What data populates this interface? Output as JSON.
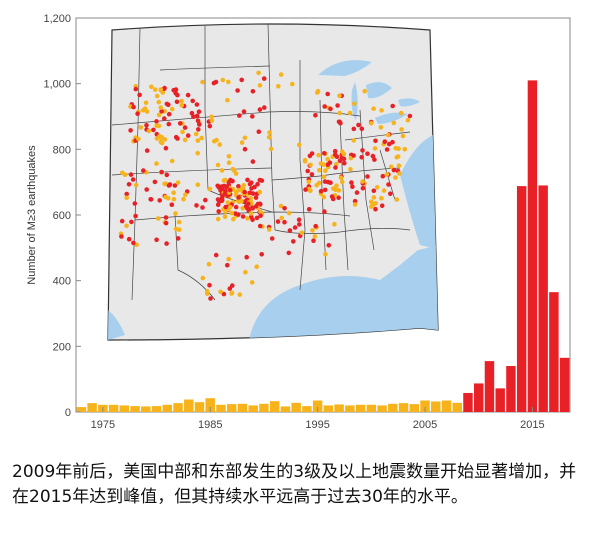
{
  "chart_data": {
    "type": "bar",
    "ylabel": "Number of M≥3 earthquakes",
    "ylim": [
      0,
      1200
    ],
    "yticks": [
      "0",
      "200",
      "400",
      "600",
      "800",
      "1,000",
      "1,200"
    ],
    "xticks": [
      "1975",
      "1985",
      "1995",
      "2005",
      "2015"
    ],
    "xlim": [
      1972.5,
      2018.5
    ],
    "x": [
      1973,
      1974,
      1975,
      1976,
      1977,
      1978,
      1979,
      1980,
      1981,
      1982,
      1983,
      1984,
      1985,
      1986,
      1987,
      1988,
      1989,
      1990,
      1991,
      1992,
      1993,
      1994,
      1995,
      1996,
      1997,
      1998,
      1999,
      2000,
      2001,
      2002,
      2003,
      2004,
      2005,
      2006,
      2007,
      2008,
      2009,
      2010,
      2011,
      2012,
      2013,
      2014,
      2015,
      2016,
      2017,
      2018
    ],
    "values": [
      15,
      27,
      22,
      22,
      20,
      18,
      17,
      18,
      22,
      27,
      38,
      30,
      42,
      22,
      24,
      25,
      20,
      25,
      33,
      17,
      28,
      18,
      35,
      20,
      23,
      20,
      22,
      22,
      20,
      25,
      27,
      24,
      35,
      32,
      35,
      28,
      58,
      87,
      155,
      72,
      140,
      688,
      1010,
      690,
      365,
      165
    ],
    "period_colors": {
      "before_2009": "#f7b31b",
      "from_2009": "#e82127"
    },
    "grid": false,
    "inset": "map of central and eastern United States with earthquake locations (yellow and red dots)"
  },
  "caption": "2009年前后，美国中部和东部发生的3级及以上地震数量开始显著增加，并在2015年达到峰值，但其持续水平远高于过去30年的水平。"
}
